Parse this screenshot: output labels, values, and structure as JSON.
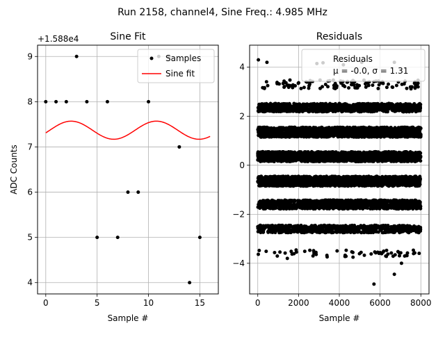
{
  "figure": {
    "suptitle": "Run 2158, channel4, Sine Freq.: 4.985 MHz",
    "colors": {
      "points": "#000000",
      "fit": "#ff0000",
      "grid": "#b0b0b0",
      "legend_edge": "#cccccc"
    }
  },
  "chart_data": [
    {
      "type": "scatter",
      "title": "Sine Fit",
      "xlabel": "Sample #",
      "ylabel": "ADC Counts",
      "offset_label": "+1.588e4",
      "xlim": [
        -0.8,
        16.8
      ],
      "ylim": [
        3.75,
        9.25
      ],
      "xticks": [
        0,
        5,
        10,
        15
      ],
      "xtick_labels": [
        "0",
        "5",
        "10",
        "15"
      ],
      "yticks": [
        4,
        5,
        6,
        7,
        8,
        9
      ],
      "ytick_labels": [
        "4",
        "5",
        "6",
        "7",
        "8",
        "9"
      ],
      "grid": true,
      "legend": {
        "placement": "upper right",
        "entries": [
          "Samples",
          "Sine fit"
        ]
      },
      "series": [
        {
          "name": "Samples",
          "kind": "points",
          "x": [
            0,
            1,
            2,
            3,
            4,
            5,
            6,
            7,
            8,
            9,
            10,
            11,
            12,
            13,
            14,
            15
          ],
          "y": [
            8,
            8,
            8,
            9,
            8,
            5,
            8,
            5,
            6,
            6,
            8,
            9,
            9,
            7,
            4,
            5
          ]
        },
        {
          "name": "Sine fit",
          "kind": "line",
          "model": {
            "offset": 7.37,
            "amplitude": 0.2,
            "period": 8.3,
            "phase": -0.3,
            "x_start": 0,
            "x_end": 16
          }
        }
      ]
    },
    {
      "type": "scatter",
      "title": "Residuals",
      "xlabel": "Sample #",
      "ylabel": "",
      "xlim": [
        -400,
        8400
      ],
      "ylim": [
        -5.25,
        4.9
      ],
      "xticks": [
        0,
        2000,
        4000,
        6000,
        8000
      ],
      "xtick_labels": [
        "0",
        "2000",
        "4000",
        "6000",
        "8000"
      ],
      "yticks": [
        -4,
        -2,
        0,
        2,
        4
      ],
      "ytick_labels": [
        "−4",
        "−2",
        "0",
        "2",
        "4"
      ],
      "grid": true,
      "legend": {
        "placement": "upper right",
        "entries": [
          "Residuals",
          "μ = -0.0, σ = 1.31"
        ]
      },
      "series": [
        {
          "name": "Residuals",
          "kind": "points",
          "n_points": 8000,
          "mean": -0.0,
          "std": 1.31,
          "dense_bands": [
            {
              "center": 2.35,
              "half_width": 0.17,
              "count": 900
            },
            {
              "center": 1.35,
              "half_width": 0.2,
              "count": 1600
            },
            {
              "center": 0.35,
              "half_width": 0.2,
              "count": 1600
            },
            {
              "center": -0.65,
              "half_width": 0.2,
              "count": 1600
            },
            {
              "center": -1.6,
              "half_width": 0.18,
              "count": 1200
            },
            {
              "center": -2.6,
              "half_width": 0.15,
              "count": 700
            }
          ],
          "sparse_bands": [
            {
              "center": 3.3,
              "half_width": 0.18,
              "count": 110
            },
            {
              "center": -3.6,
              "half_width": 0.15,
              "count": 60
            }
          ],
          "outliers": [
            {
              "x": 30,
              "y": 4.3
            },
            {
              "x": 450,
              "y": 4.2
            },
            {
              "x": 2900,
              "y": 4.15
            },
            {
              "x": 3200,
              "y": 4.18
            },
            {
              "x": 4200,
              "y": 4.1
            },
            {
              "x": 5100,
              "y": 4.2
            },
            {
              "x": 6700,
              "y": 4.2
            },
            {
              "x": 5700,
              "y": -4.85
            },
            {
              "x": 6700,
              "y": -4.45
            },
            {
              "x": 7050,
              "y": -4.0
            },
            {
              "x": 1450,
              "y": -3.8
            }
          ]
        }
      ]
    }
  ]
}
